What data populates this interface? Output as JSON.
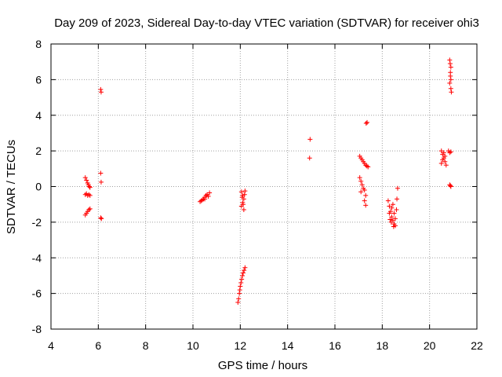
{
  "chart_data": {
    "type": "scatter",
    "title": "Day 209 of 2023, Sidereal Day-to-day VTEC variation (SDTVAR) for receiver ohi3",
    "xlabel": "GPS time / hours",
    "ylabel": "SDTVAR / TECUs",
    "xlim": [
      4,
      22
    ],
    "ylim": [
      -8,
      8
    ],
    "xticks": [
      4,
      6,
      8,
      10,
      12,
      14,
      16,
      18,
      20,
      22
    ],
    "yticks": [
      -8,
      -6,
      -4,
      -2,
      0,
      2,
      4,
      6,
      8
    ],
    "grid": true,
    "marker": "+",
    "colors": {
      "series": "#ff0000",
      "grid": "#a0a0a0",
      "axis": "#000000"
    },
    "series": [
      {
        "name": "SDTVAR",
        "points": [
          [
            5.45,
            0.5
          ],
          [
            5.5,
            0.35
          ],
          [
            5.55,
            0.2
          ],
          [
            5.58,
            0.1
          ],
          [
            5.62,
            0.0
          ],
          [
            5.65,
            -0.05
          ],
          [
            5.45,
            -0.45
          ],
          [
            5.5,
            -0.4
          ],
          [
            5.55,
            -0.5
          ],
          [
            5.6,
            -0.45
          ],
          [
            5.65,
            -0.5
          ],
          [
            5.45,
            -1.6
          ],
          [
            5.5,
            -1.5
          ],
          [
            5.55,
            -1.4
          ],
          [
            5.6,
            -1.3
          ],
          [
            5.65,
            -1.25
          ],
          [
            6.1,
            5.45
          ],
          [
            6.12,
            5.3
          ],
          [
            6.1,
            0.75
          ],
          [
            6.12,
            0.25
          ],
          [
            6.1,
            -1.75
          ],
          [
            6.13,
            -1.8
          ],
          [
            10.3,
            -0.85
          ],
          [
            10.35,
            -0.8
          ],
          [
            10.4,
            -0.75
          ],
          [
            10.45,
            -0.7
          ],
          [
            10.5,
            -0.6
          ],
          [
            10.55,
            -0.5
          ],
          [
            10.6,
            -0.45
          ],
          [
            10.65,
            -0.55
          ],
          [
            10.7,
            -0.35
          ],
          [
            10.5,
            -0.7
          ],
          [
            12.05,
            -0.3
          ],
          [
            12.1,
            -0.5
          ],
          [
            12.15,
            -0.7
          ],
          [
            12.1,
            -0.9
          ],
          [
            12.05,
            -1.1
          ],
          [
            12.15,
            -1.3
          ],
          [
            12.2,
            -0.25
          ],
          [
            12.12,
            -1.0
          ],
          [
            12.08,
            -0.6
          ],
          [
            12.18,
            -0.45
          ],
          [
            11.9,
            -6.5
          ],
          [
            11.93,
            -6.3
          ],
          [
            11.96,
            -6.0
          ],
          [
            11.98,
            -5.8
          ],
          [
            12.0,
            -5.6
          ],
          [
            12.03,
            -5.4
          ],
          [
            12.06,
            -5.2
          ],
          [
            12.09,
            -5.0
          ],
          [
            12.12,
            -4.85
          ],
          [
            12.16,
            -4.7
          ],
          [
            12.2,
            -4.55
          ],
          [
            14.95,
            2.65
          ],
          [
            14.93,
            1.6
          ],
          [
            17.05,
            1.7
          ],
          [
            17.1,
            1.6
          ],
          [
            17.15,
            1.5
          ],
          [
            17.2,
            1.4
          ],
          [
            17.25,
            1.3
          ],
          [
            17.3,
            1.2
          ],
          [
            17.35,
            1.15
          ],
          [
            17.4,
            1.1
          ],
          [
            17.05,
            0.5
          ],
          [
            17.1,
            0.3
          ],
          [
            17.15,
            0.1
          ],
          [
            17.2,
            -0.1
          ],
          [
            17.1,
            -0.3
          ],
          [
            17.25,
            -0.2
          ],
          [
            17.3,
            -0.5
          ],
          [
            17.25,
            -0.8
          ],
          [
            17.3,
            -1.05
          ],
          [
            17.32,
            3.55
          ],
          [
            17.36,
            3.6
          ],
          [
            18.25,
            -0.8
          ],
          [
            18.3,
            -1.1
          ],
          [
            18.35,
            -1.4
          ],
          [
            18.4,
            -1.7
          ],
          [
            18.45,
            -1.9
          ],
          [
            18.5,
            -2.1
          ],
          [
            18.55,
            -2.2
          ],
          [
            18.3,
            -1.5
          ],
          [
            18.4,
            -1.2
          ],
          [
            18.45,
            -1.0
          ],
          [
            18.5,
            -1.5
          ],
          [
            18.55,
            -1.8
          ],
          [
            18.6,
            -1.3
          ],
          [
            18.62,
            -0.7
          ],
          [
            18.65,
            -0.1
          ],
          [
            18.38,
            -2.0
          ],
          [
            18.48,
            -2.25
          ],
          [
            18.33,
            -1.85
          ],
          [
            20.5,
            2.0
          ],
          [
            20.55,
            1.8
          ],
          [
            20.6,
            1.6
          ],
          [
            20.65,
            1.4
          ],
          [
            20.7,
            1.2
          ],
          [
            20.55,
            1.5
          ],
          [
            20.6,
            1.9
          ],
          [
            20.65,
            1.7
          ],
          [
            20.5,
            1.3
          ],
          [
            20.8,
            2.0
          ],
          [
            20.85,
            1.9
          ],
          [
            20.9,
            1.95
          ],
          [
            20.85,
            0.1
          ],
          [
            20.9,
            0.0
          ],
          [
            20.88,
            0.05
          ],
          [
            20.85,
            7.1
          ],
          [
            20.87,
            6.9
          ],
          [
            20.9,
            6.7
          ],
          [
            20.88,
            6.4
          ],
          [
            20.9,
            6.0
          ],
          [
            20.85,
            5.8
          ],
          [
            20.9,
            5.5
          ],
          [
            20.92,
            5.3
          ],
          [
            20.88,
            6.2
          ]
        ]
      }
    ]
  }
}
